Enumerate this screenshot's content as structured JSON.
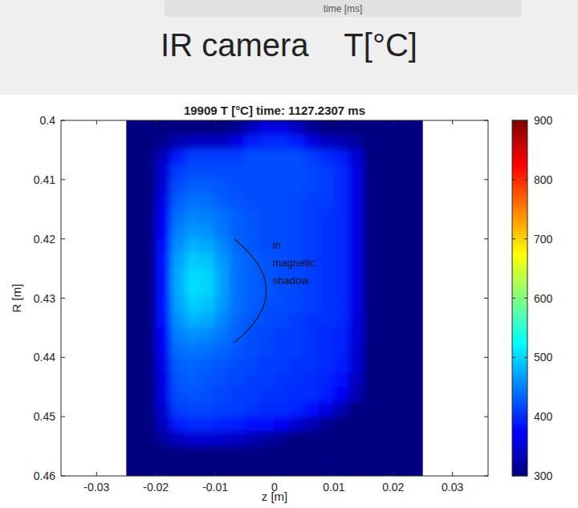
{
  "page": {
    "header_fragment": "time [ms]",
    "heading": "IR camera    T[°C]"
  },
  "chart_data": {
    "type": "heatmap",
    "title": "19909 T [°C] time: 1127.2307 ms",
    "x_label": "z [m]",
    "y_label": "R [m]",
    "color": "jet",
    "xlim": [
      -0.036,
      0.036
    ],
    "xticks": [
      -0.03,
      -0.02,
      -0.01,
      0,
      0.01,
      0.02,
      0.03
    ],
    "ylim": [
      0.46,
      0.4
    ],
    "yticks": [
      0.4,
      0.41,
      0.42,
      0.43,
      0.44,
      0.45,
      0.46
    ],
    "x": [
      -0.02375,
      -0.02125,
      -0.01875,
      -0.01625,
      -0.01375,
      -0.01125,
      -0.00875,
      -0.00625,
      -0.00375,
      -0.00125,
      0.00125,
      0.00375,
      0.00625,
      0.00875,
      0.01125,
      0.01375,
      0.01625,
      0.01875,
      0.02125,
      0.02375
    ],
    "y": [
      0.40125,
      0.40375,
      0.40625,
      0.40875,
      0.41125,
      0.41375,
      0.41625,
      0.41875,
      0.42125,
      0.42375,
      0.42625,
      0.42875,
      0.43125,
      0.43375,
      0.43625,
      0.43875,
      0.44125,
      0.44375,
      0.44625,
      0.44875,
      0.45125,
      0.45375,
      0.45625,
      0.45875
    ],
    "values": [
      [
        300,
        300,
        300,
        300,
        300,
        300,
        300,
        310,
        340,
        360,
        360,
        340,
        310,
        300,
        300,
        300,
        300,
        300,
        300,
        300
      ],
      [
        300,
        300,
        310,
        330,
        340,
        340,
        340,
        360,
        390,
        400,
        400,
        390,
        360,
        340,
        330,
        320,
        300,
        300,
        300,
        300
      ],
      [
        300,
        300,
        340,
        390,
        410,
        410,
        410,
        410,
        420,
        420,
        420,
        420,
        410,
        400,
        390,
        350,
        300,
        300,
        300,
        300
      ],
      [
        300,
        300,
        350,
        410,
        420,
        420,
        420,
        420,
        420,
        420,
        420,
        420,
        415,
        410,
        400,
        360,
        300,
        300,
        300,
        300
      ],
      [
        300,
        300,
        350,
        420,
        430,
        430,
        425,
        420,
        420,
        420,
        420,
        420,
        415,
        410,
        400,
        360,
        300,
        300,
        300,
        300
      ],
      [
        300,
        300,
        360,
        430,
        440,
        440,
        430,
        425,
        420,
        420,
        420,
        415,
        410,
        410,
        400,
        360,
        300,
        300,
        300,
        300
      ],
      [
        300,
        300,
        370,
        440,
        455,
        450,
        440,
        430,
        425,
        420,
        420,
        415,
        410,
        405,
        400,
        360,
        300,
        300,
        300,
        300
      ],
      [
        300,
        300,
        370,
        450,
        465,
        460,
        445,
        430,
        425,
        420,
        420,
        415,
        410,
        405,
        400,
        360,
        300,
        300,
        300,
        300
      ],
      [
        300,
        300,
        380,
        460,
        480,
        475,
        455,
        435,
        425,
        420,
        420,
        415,
        410,
        405,
        400,
        360,
        300,
        300,
        300,
        300
      ],
      [
        300,
        300,
        380,
        470,
        495,
        490,
        465,
        440,
        430,
        425,
        420,
        415,
        410,
        405,
        400,
        360,
        300,
        300,
        300,
        300
      ],
      [
        300,
        300,
        385,
        475,
        505,
        500,
        470,
        440,
        430,
        425,
        420,
        415,
        410,
        405,
        400,
        360,
        300,
        300,
        300,
        300
      ],
      [
        300,
        300,
        385,
        475,
        505,
        500,
        470,
        440,
        430,
        425,
        420,
        415,
        410,
        405,
        400,
        360,
        300,
        300,
        300,
        300
      ],
      [
        300,
        300,
        380,
        470,
        495,
        490,
        465,
        440,
        430,
        420,
        420,
        415,
        410,
        405,
        400,
        360,
        300,
        300,
        300,
        300
      ],
      [
        300,
        300,
        380,
        460,
        480,
        475,
        455,
        435,
        425,
        420,
        415,
        410,
        405,
        405,
        400,
        355,
        300,
        300,
        300,
        300
      ],
      [
        300,
        300,
        370,
        450,
        460,
        455,
        445,
        430,
        420,
        415,
        410,
        410,
        405,
        400,
        395,
        355,
        300,
        300,
        300,
        300
      ],
      [
        300,
        300,
        370,
        440,
        445,
        440,
        435,
        425,
        420,
        415,
        410,
        410,
        405,
        400,
        395,
        350,
        300,
        300,
        300,
        300
      ],
      [
        300,
        300,
        360,
        430,
        435,
        430,
        425,
        420,
        415,
        410,
        410,
        405,
        405,
        400,
        390,
        350,
        300,
        300,
        300,
        300
      ],
      [
        300,
        300,
        360,
        425,
        430,
        425,
        420,
        415,
        410,
        410,
        405,
        405,
        400,
        395,
        385,
        340,
        300,
        300,
        300,
        300
      ],
      [
        300,
        300,
        360,
        420,
        425,
        420,
        415,
        410,
        410,
        405,
        405,
        400,
        400,
        390,
        370,
        330,
        300,
        300,
        300,
        300
      ],
      [
        300,
        300,
        350,
        410,
        415,
        415,
        410,
        410,
        405,
        400,
        400,
        395,
        385,
        360,
        330,
        300,
        300,
        300,
        300,
        300
      ],
      [
        300,
        300,
        340,
        390,
        400,
        400,
        395,
        390,
        385,
        380,
        370,
        350,
        330,
        310,
        300,
        300,
        300,
        300,
        300,
        300
      ],
      [
        300,
        300,
        320,
        340,
        350,
        350,
        345,
        340,
        330,
        320,
        310,
        300,
        300,
        300,
        300,
        300,
        300,
        300,
        300,
        300
      ],
      [
        300,
        300,
        300,
        300,
        300,
        300,
        300,
        300,
        300,
        300,
        300,
        300,
        300,
        300,
        300,
        300,
        300,
        300,
        300,
        300
      ],
      [
        300,
        300,
        300,
        300,
        300,
        300,
        300,
        300,
        300,
        300,
        300,
        300,
        300,
        300,
        300,
        300,
        300,
        300,
        300,
        300
      ]
    ],
    "colorbar": {
      "range": [
        300,
        900
      ],
      "ticks": [
        300,
        400,
        500,
        600,
        700,
        800,
        900
      ]
    },
    "annotations": [
      {
        "text": "in magnetic shadow"
      }
    ]
  }
}
